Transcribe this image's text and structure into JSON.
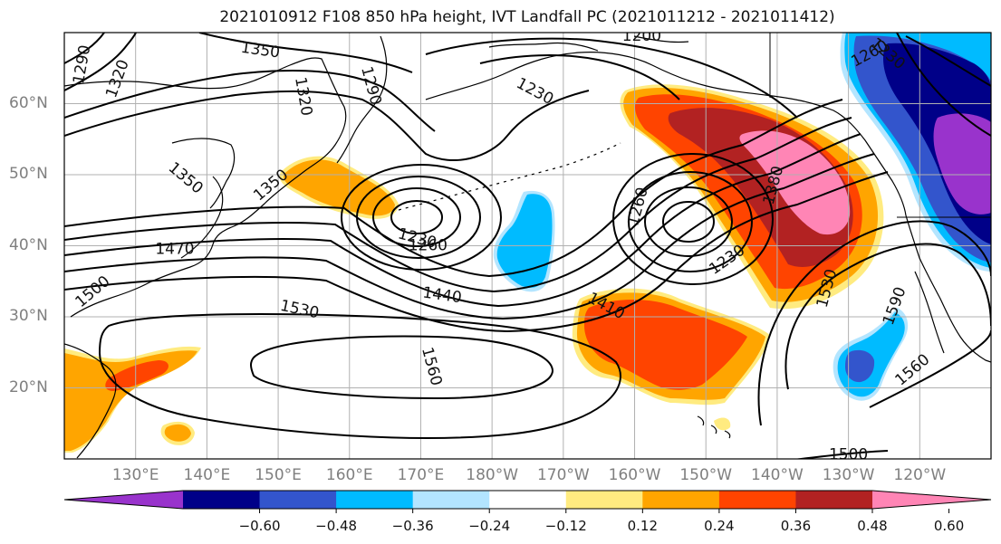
{
  "title": "2021010912 F108 850 hPa height, IVT Landfall PC (2021011212 - 2021011412)",
  "map": {
    "projection": "cylindrical",
    "lon_range": [
      120,
      250
    ],
    "lat_range": [
      10,
      70
    ],
    "lat_ticks": [
      {
        "lat": 60,
        "label": "60°N"
      },
      {
        "lat": 50,
        "label": "50°N"
      },
      {
        "lat": 40,
        "label": "40°N"
      },
      {
        "lat": 30,
        "label": "30°N"
      },
      {
        "lat": 20,
        "label": "20°N"
      }
    ],
    "lon_ticks": [
      {
        "lon": 130,
        "label": "130°E"
      },
      {
        "lon": 140,
        "label": "140°E"
      },
      {
        "lon": 150,
        "label": "150°E"
      },
      {
        "lon": 160,
        "label": "160°E"
      },
      {
        "lon": 170,
        "label": "170°E"
      },
      {
        "lon": 180,
        "label": "180°W"
      },
      {
        "lon": 190,
        "label": "170°W"
      },
      {
        "lon": 200,
        "label": "160°W"
      },
      {
        "lon": 210,
        "label": "150°W"
      },
      {
        "lon": 220,
        "label": "140°W"
      },
      {
        "lon": 230,
        "label": "130°W"
      },
      {
        "lon": 240,
        "label": "120°W"
      }
    ],
    "grid": true,
    "height_contour_labels": [
      {
        "text": "1290",
        "lon": 122.5,
        "lat": 65.5,
        "angle": -80
      },
      {
        "text": "1320",
        "lon": 127.5,
        "lat": 63.5,
        "angle": -70
      },
      {
        "text": "1350",
        "lon": 147.5,
        "lat": 67.5,
        "angle": 8
      },
      {
        "text": "1320",
        "lon": 153.5,
        "lat": 61,
        "angle": 80
      },
      {
        "text": "1290",
        "lon": 163,
        "lat": 62.5,
        "angle": 75
      },
      {
        "text": "1200",
        "lon": 201,
        "lat": 69.5,
        "angle": 0
      },
      {
        "text": "1230",
        "lon": 186,
        "lat": 61.7,
        "angle": 28
      },
      {
        "text": "1260",
        "lon": 233,
        "lat": 67,
        "angle": -28
      },
      {
        "text": "1230",
        "lon": 235.5,
        "lat": 67,
        "angle": 40
      },
      {
        "text": "1350",
        "lon": 137,
        "lat": 49.5,
        "angle": 40
      },
      {
        "text": "1350",
        "lon": 149,
        "lat": 48.5,
        "angle": -40
      },
      {
        "text": "1470",
        "lon": 135.5,
        "lat": 39.5,
        "angle": 0
      },
      {
        "text": "1500",
        "lon": 124,
        "lat": 33.5,
        "angle": -40
      },
      {
        "text": "1230",
        "lon": 169.5,
        "lat": 41,
        "angle": 15
      },
      {
        "text": "1260",
        "lon": 171,
        "lat": 40,
        "angle": 0
      },
      {
        "text": "1260",
        "lon": 200.5,
        "lat": 45.5,
        "angle": -75
      },
      {
        "text": "1230",
        "lon": 213,
        "lat": 38,
        "angle": -35
      },
      {
        "text": "1380",
        "lon": 219.5,
        "lat": 48.5,
        "angle": -75
      },
      {
        "text": "1440",
        "lon": 173,
        "lat": 33,
        "angle": 8
      },
      {
        "text": "1410",
        "lon": 196,
        "lat": 31.5,
        "angle": 28
      },
      {
        "text": "1530",
        "lon": 153,
        "lat": 31,
        "angle": 12
      },
      {
        "text": "1530",
        "lon": 227,
        "lat": 34,
        "angle": -75
      },
      {
        "text": "1560",
        "lon": 171.5,
        "lat": 23,
        "angle": 75
      },
      {
        "text": "1590",
        "lon": 236.5,
        "lat": 31.5,
        "angle": -70
      },
      {
        "text": "1560",
        "lon": 239,
        "lat": 22.5,
        "angle": -40
      },
      {
        "text": "1500",
        "lon": 230,
        "lat": 10.6,
        "angle": 0
      }
    ]
  },
  "colorbar": {
    "colors": [
      "#9933cc",
      "#000088",
      "#3355cc",
      "#00bbff",
      "#b3e5ff",
      "#ffffff",
      "#ffeb80",
      "#ffa500",
      "#ff4400",
      "#b22222",
      "#ff85b5"
    ],
    "boundaries": [
      -0.6,
      -0.48,
      -0.36,
      -0.24,
      -0.12,
      0.12,
      0.24,
      0.36,
      0.48,
      0.6
    ],
    "tick_labels": [
      "−0.60",
      "−0.48",
      "−0.36",
      "−0.24",
      "−0.12",
      "0.12",
      "0.24",
      "0.36",
      "0.48",
      "0.60"
    ],
    "extend": "both"
  }
}
